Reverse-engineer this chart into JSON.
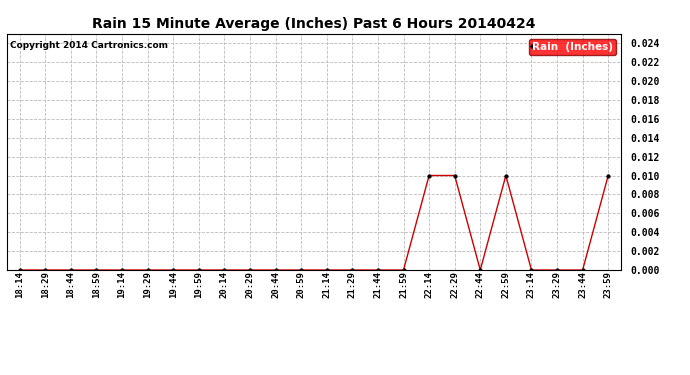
{
  "title": "Rain 15 Minute Average (Inches) Past 6 Hours 20140424",
  "copyright": "Copyright 2014 Cartronics.com",
  "legend_label": "Rain  (Inches)",
  "line_color": "#cc0000",
  "marker_color": "#000000",
  "background_color": "#ffffff",
  "plot_bg_color": "#ffffff",
  "grid_color": "#bbbbbb",
  "ylim": [
    0.0,
    0.025
  ],
  "yticks": [
    0.0,
    0.002,
    0.004,
    0.006,
    0.008,
    0.01,
    0.012,
    0.014,
    0.016,
    0.018,
    0.02,
    0.022,
    0.024
  ],
  "x_labels": [
    "18:14",
    "18:29",
    "18:44",
    "18:59",
    "19:14",
    "19:29",
    "19:44",
    "19:59",
    "20:14",
    "20:29",
    "20:44",
    "20:59",
    "21:14",
    "21:29",
    "21:44",
    "21:59",
    "22:14",
    "22:29",
    "22:44",
    "22:59",
    "23:14",
    "23:29",
    "23:44",
    "23:59"
  ],
  "y_values": [
    0.0,
    0.0,
    0.0,
    0.0,
    0.0,
    0.0,
    0.0,
    0.0,
    0.0,
    0.0,
    0.0,
    0.0,
    0.0,
    0.0,
    0.0,
    0.0,
    0.01,
    0.01,
    0.0,
    0.01,
    0.0,
    0.0,
    0.0,
    0.01
  ]
}
